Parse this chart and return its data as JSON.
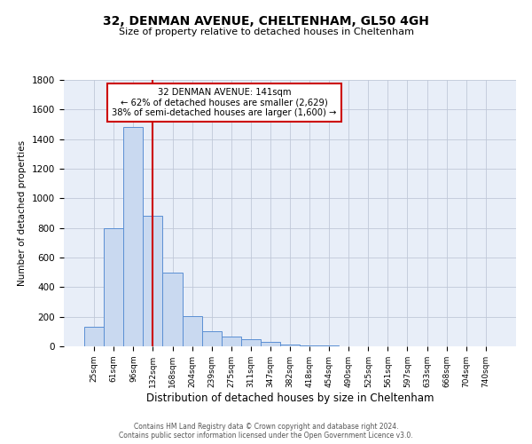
{
  "title": "32, DENMAN AVENUE, CHELTENHAM, GL50 4GH",
  "subtitle": "Size of property relative to detached houses in Cheltenham",
  "xlabel": "Distribution of detached houses by size in Cheltenham",
  "ylabel": "Number of detached properties",
  "categories": [
    "25sqm",
    "61sqm",
    "96sqm",
    "132sqm",
    "168sqm",
    "204sqm",
    "239sqm",
    "275sqm",
    "311sqm",
    "347sqm",
    "382sqm",
    "418sqm",
    "454sqm",
    "490sqm",
    "525sqm",
    "561sqm",
    "597sqm",
    "633sqm",
    "668sqm",
    "704sqm",
    "740sqm"
  ],
  "values": [
    130,
    800,
    1480,
    880,
    500,
    205,
    105,
    65,
    50,
    32,
    15,
    8,
    4,
    2,
    1,
    1,
    0,
    0,
    0,
    0,
    0
  ],
  "bar_color": "#c9d9f0",
  "bar_edge_color": "#5b8fd4",
  "vline_x_index": 3,
  "vline_color": "#cc0000",
  "annotation_line1": "32 DENMAN AVENUE: 141sqm",
  "annotation_line2": "← 62% of detached houses are smaller (2,629)",
  "annotation_line3": "38% of semi-detached houses are larger (1,600) →",
  "annotation_box_color": "#ffffff",
  "annotation_box_edgecolor": "#cc0000",
  "ylim": [
    0,
    1800
  ],
  "yticks": [
    0,
    200,
    400,
    600,
    800,
    1000,
    1200,
    1400,
    1600,
    1800
  ],
  "footer_line1": "Contains HM Land Registry data © Crown copyright and database right 2024.",
  "footer_line2": "Contains public sector information licensed under the Open Government Licence v3.0.",
  "background_color": "#ffffff",
  "plot_bg_color": "#e8eef8",
  "grid_color": "#c0c8d8"
}
